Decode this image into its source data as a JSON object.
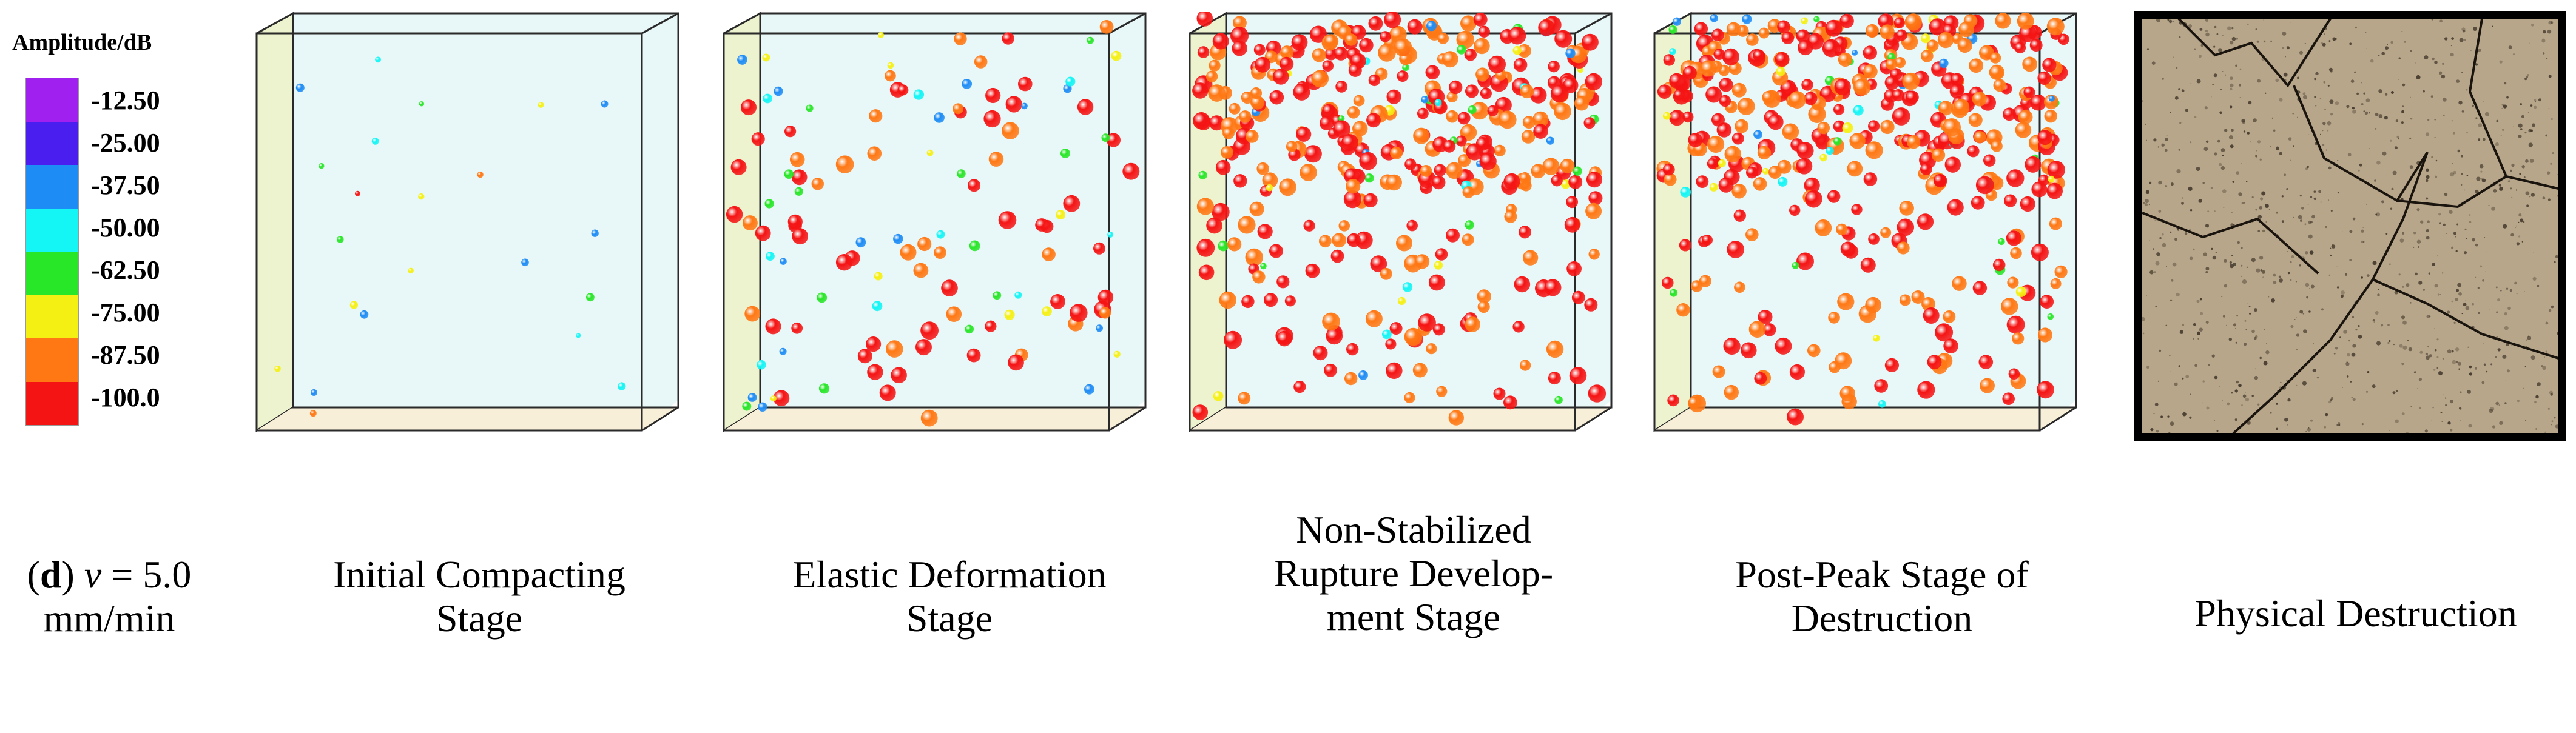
{
  "legend": {
    "title": "Amplitude/dB",
    "levels": [
      {
        "label": "-12.50",
        "color": "#a020f0"
      },
      {
        "label": "-25.00",
        "color": "#4b1ef0"
      },
      {
        "label": "-37.50",
        "color": "#1e8cf5"
      },
      {
        "label": "-50.00",
        "color": "#14f5f5"
      },
      {
        "label": "-62.50",
        "color": "#28e628"
      },
      {
        "label": "-75.00",
        "color": "#f5f014"
      },
      {
        "label": "-87.50",
        "color": "#ff7814"
      },
      {
        "label": "-100.0",
        "color": "#f51414"
      }
    ]
  },
  "panel_label": {
    "letter": "d",
    "speed_var": "v",
    "speed_line": " = 5.0",
    "unit_line": "mm/min"
  },
  "stages": [
    {
      "line1": "Initial Compacting",
      "line2": "Stage",
      "line3": ""
    },
    {
      "line1": "Elastic Deformation",
      "line2": "Stage",
      "line3": ""
    },
    {
      "line1": "Non-Stabilized",
      "line2": "Rupture Develop-",
      "line3": "ment Stage"
    },
    {
      "line1": "Post-Peak Stage of",
      "line2": "Destruction",
      "line3": ""
    },
    {
      "line1": "Physical Destruction",
      "line2": "",
      "line3": ""
    }
  ],
  "colors": {
    "box_face": "#e8f7f7",
    "box_side": "#eef3cf",
    "box_edge": "#2a2a2a",
    "rock": "#b8a68a"
  }
}
